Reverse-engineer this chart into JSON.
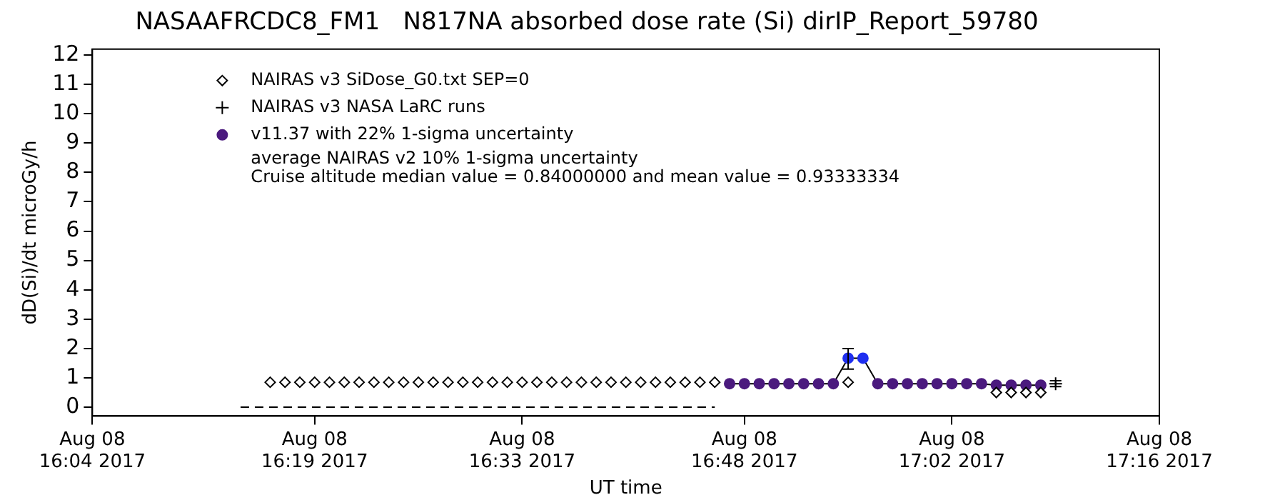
{
  "chart_data": {
    "type": "scatter",
    "title": "NASAAFRCDC8_FM1   N817NA absorbed dose rate (Si) dirIP_Report_59780",
    "xlabel": "UT time",
    "ylabel": "dD(Si)/dt microGy/h",
    "xlim": [
      "2017-08-08T16:04",
      "2017-08-08T17:16"
    ],
    "xticks": [
      {
        "value": "2017-08-08T16:04",
        "label": "Aug 08\n16:04 2017"
      },
      {
        "value": "2017-08-08T16:19",
        "label": "Aug 08\n16:19 2017"
      },
      {
        "value": "2017-08-08T16:33",
        "label": "Aug 08\n16:33 2017"
      },
      {
        "value": "2017-08-08T16:48",
        "label": "Aug 08\n16:48 2017"
      },
      {
        "value": "2017-08-08T17:02",
        "label": "Aug 08\n17:02 2017"
      },
      {
        "value": "2017-08-08T17:16",
        "label": "Aug 08\n17:16 2017"
      }
    ],
    "ylim": [
      -0.3,
      12.2
    ],
    "yticks": [
      0,
      1,
      2,
      3,
      4,
      5,
      6,
      7,
      8,
      9,
      10,
      11,
      12
    ],
    "grid": false,
    "legend": "top left",
    "annotations": [
      "average NAIRAS v2 10% 1-sigma uncertainty",
      "Cruise altitude median value = 0.84000000 and mean value = 0.93333334"
    ],
    "series": [
      {
        "name": "NAIRAS v3 SiDose_G0.txt SEP=0",
        "type": "scatter",
        "marker": "diamond",
        "color": "#000000",
        "x": [
          "2017-08-08T16:16",
          "2017-08-08T16:17",
          "2017-08-08T16:18",
          "2017-08-08T16:19",
          "2017-08-08T16:20",
          "2017-08-08T16:21",
          "2017-08-08T16:22",
          "2017-08-08T16:23",
          "2017-08-08T16:24",
          "2017-08-08T16:25",
          "2017-08-08T16:26",
          "2017-08-08T16:27",
          "2017-08-08T16:28",
          "2017-08-08T16:29",
          "2017-08-08T16:30",
          "2017-08-08T16:31",
          "2017-08-08T16:32",
          "2017-08-08T16:33",
          "2017-08-08T16:34",
          "2017-08-08T16:35",
          "2017-08-08T16:36",
          "2017-08-08T16:37",
          "2017-08-08T16:38",
          "2017-08-08T16:39",
          "2017-08-08T16:40",
          "2017-08-08T16:41",
          "2017-08-08T16:42",
          "2017-08-08T16:43",
          "2017-08-08T16:44",
          "2017-08-08T16:45",
          "2017-08-08T16:46",
          "2017-08-08T16:55",
          "2017-08-08T17:05",
          "2017-08-08T17:06",
          "2017-08-08T17:07",
          "2017-08-08T17:08"
        ],
        "values": [
          0.85,
          0.85,
          0.85,
          0.85,
          0.85,
          0.85,
          0.85,
          0.85,
          0.85,
          0.85,
          0.85,
          0.85,
          0.85,
          0.85,
          0.85,
          0.85,
          0.85,
          0.85,
          0.85,
          0.85,
          0.85,
          0.85,
          0.85,
          0.85,
          0.85,
          0.85,
          0.85,
          0.85,
          0.85,
          0.85,
          0.85,
          0.85,
          0.5,
          0.5,
          0.5,
          0.5
        ]
      },
      {
        "name": "NAIRAS v3 NASA LaRC runs",
        "type": "scatter",
        "marker": "cross",
        "color": "#000000",
        "x": [
          "2017-08-08T17:09"
        ],
        "values": [
          0.8
        ],
        "errors": [
          0.1
        ]
      },
      {
        "type": "line",
        "marker": "none",
        "line_style": "dashed",
        "color": "#000000",
        "x": [
          "2017-08-08T16:14",
          "2017-08-08T16:46"
        ],
        "values": [
          0,
          0
        ]
      },
      {
        "name": "v11.37 with 22% 1-sigma uncertainty",
        "type": "line",
        "marker": "circle",
        "color": "#000000",
        "colors": [
          "#4b1a7e",
          "#4b1a7e",
          "#4b1a7e",
          "#4b1a7e",
          "#4b1a7e",
          "#4b1a7e",
          "#4b1a7e",
          "#4b1a7e",
          "#1f2ff0",
          "#1f2ff0",
          "#4b1a7e",
          "#4b1a7e",
          "#4b1a7e",
          "#4b1a7e",
          "#4b1a7e",
          "#4b1a7e",
          "#4b1a7e",
          "#4b1a7e",
          "#4b1a7e",
          "#4b1a7e",
          "#4b1a7e",
          "#4b1a7e"
        ],
        "x": [
          "2017-08-08T16:47",
          "2017-08-08T16:48",
          "2017-08-08T16:49",
          "2017-08-08T16:50",
          "2017-08-08T16:51",
          "2017-08-08T16:52",
          "2017-08-08T16:53",
          "2017-08-08T16:54",
          "2017-08-08T16:55",
          "2017-08-08T16:56",
          "2017-08-08T16:57",
          "2017-08-08T16:58",
          "2017-08-08T16:59",
          "2017-08-08T17:00",
          "2017-08-08T17:01",
          "2017-08-08T17:02",
          "2017-08-08T17:03",
          "2017-08-08T17:04",
          "2017-08-08T17:05",
          "2017-08-08T17:06",
          "2017-08-08T17:07",
          "2017-08-08T17:08"
        ],
        "values": [
          0.8,
          0.8,
          0.8,
          0.8,
          0.8,
          0.8,
          0.8,
          0.8,
          1.67,
          1.67,
          0.8,
          0.8,
          0.8,
          0.8,
          0.8,
          0.8,
          0.8,
          0.8,
          0.75,
          0.75,
          0.75,
          0.75
        ],
        "errors": [
          null,
          null,
          null,
          null,
          null,
          null,
          null,
          null,
          [
            1.3,
            2.0
          ],
          null,
          null,
          null,
          null,
          null,
          null,
          null,
          null,
          null,
          null,
          null,
          null,
          null
        ]
      }
    ]
  }
}
